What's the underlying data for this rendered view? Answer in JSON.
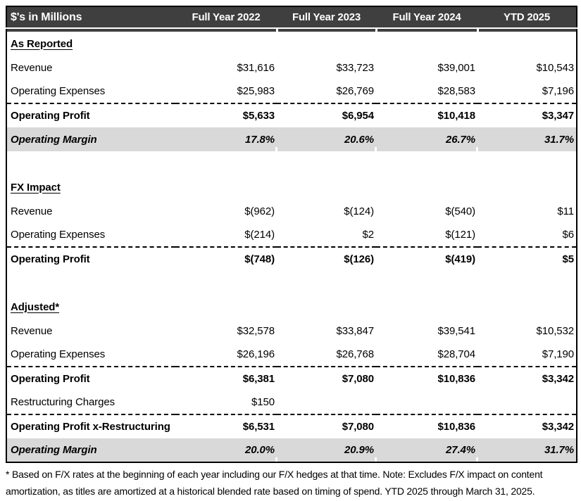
{
  "header": {
    "label": "$'s in Millions",
    "columns": [
      "Full Year 2022",
      "Full Year 2023",
      "Full Year 2024",
      "YTD 2025"
    ]
  },
  "sections": [
    {
      "title": "As Reported",
      "rows": [
        {
          "label": "Revenue",
          "values": [
            "$31,616",
            "$33,723",
            "$39,001",
            "$10,543"
          ]
        },
        {
          "label": "Operating Expenses",
          "values": [
            "$25,983",
            "$26,769",
            "$28,583",
            "$7,196"
          ]
        },
        {
          "label": "Operating Profit",
          "values": [
            "$5,633",
            "$6,954",
            "$10,418",
            "$3,347"
          ]
        },
        {
          "label": "Operating Margin",
          "values": [
            "17.8%",
            "20.6%",
            "26.7%",
            "31.7%"
          ]
        }
      ]
    },
    {
      "title": "FX Impact",
      "rows": [
        {
          "label": "Revenue",
          "values": [
            "$(962)",
            "$(124)",
            "$(540)",
            "$11"
          ]
        },
        {
          "label": "Operating Expenses",
          "values": [
            "$(214)",
            "$2",
            "$(121)",
            "$6"
          ]
        },
        {
          "label": "Operating Profit",
          "values": [
            "$(748)",
            "$(126)",
            "$(419)",
            "$5"
          ]
        }
      ]
    },
    {
      "title": "Adjusted*",
      "rows": [
        {
          "label": "Revenue",
          "values": [
            "$32,578",
            "$33,847",
            "$39,541",
            "$10,532"
          ]
        },
        {
          "label": "Operating Expenses",
          "values": [
            "$26,196",
            "$26,768",
            "$28,704",
            "$7,190"
          ]
        },
        {
          "label": "Operating Profit",
          "values": [
            "$6,381",
            "$7,080",
            "$10,836",
            "$3,342"
          ]
        },
        {
          "label": "Restructuring Charges",
          "values": [
            "$150",
            "",
            "",
            ""
          ]
        },
        {
          "label": "Operating Profit x-Restructuring",
          "values": [
            "$6,531",
            "$7,080",
            "$10,836",
            "$3,342"
          ]
        },
        {
          "label": "Operating Margin",
          "values": [
            "20.0%",
            "20.9%",
            "27.4%",
            "31.7%"
          ]
        }
      ]
    }
  ],
  "footnote": "* Based on F/X rates at the beginning of each year including our F/X hedges at that time. Note: Excludes F/X impact on content amortization, as titles are amortized at a historical blended rate based on timing of spend. YTD 2025 through March 31, 2025.",
  "colors": {
    "header_bg": "#3f3f3f",
    "header_text": "#ffffff",
    "margin_row_bg": "#d9d9d9",
    "border": "#000000"
  }
}
